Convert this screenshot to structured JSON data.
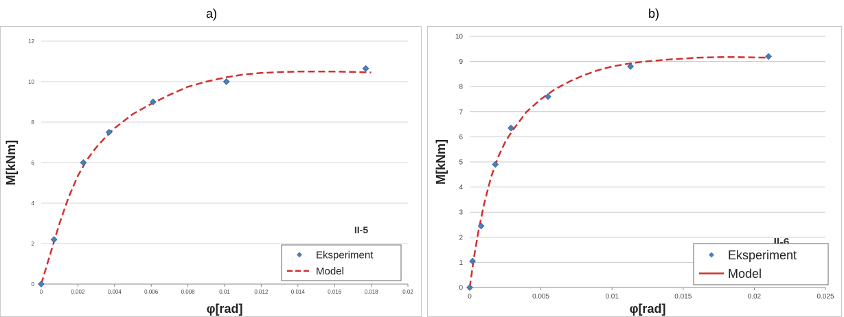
{
  "panels": {
    "a_label": "a)",
    "b_label": "b)"
  },
  "chart_data": [
    {
      "type": "scatter",
      "panel": "a)",
      "title": "",
      "xlabel": "φ[rad]",
      "ylabel": "M[kNm]",
      "annotation": "II-5",
      "xlim": [
        0,
        0.02
      ],
      "ylim": [
        0,
        12
      ],
      "xticks": [
        "0",
        "0.002",
        "0.004",
        "0.006",
        "0.008",
        "0.01",
        "0.012",
        "0.014",
        "0.016",
        "0.018",
        "0.02"
      ],
      "yticks": [
        "0",
        "2",
        "4",
        "6",
        "8",
        "10",
        "12"
      ],
      "grid": true,
      "legend_position": "bottom-right",
      "series": [
        {
          "name": "Eksperiment",
          "style": "diamond-markers",
          "color": "#4A7EBB",
          "x": [
            0,
            0.0007,
            0.0023,
            0.0037,
            0.0061,
            0.0101,
            0.0177
          ],
          "y": [
            0,
            2.2,
            6.0,
            7.5,
            9.0,
            10.0,
            10.65
          ]
        },
        {
          "name": "Model",
          "style": "dashed-line",
          "color": "#D32F2F",
          "x": [
            0,
            0.0005,
            0.001,
            0.0015,
            0.002,
            0.0025,
            0.003,
            0.0035,
            0.004,
            0.005,
            0.006,
            0.007,
            0.008,
            0.009,
            0.01,
            0.011,
            0.012,
            0.013,
            0.014,
            0.015,
            0.016,
            0.017,
            0.018
          ],
          "y": [
            0,
            1.5,
            3.0,
            4.3,
            5.35,
            6.15,
            6.75,
            7.25,
            7.7,
            8.4,
            8.9,
            9.35,
            9.75,
            10.0,
            10.2,
            10.35,
            10.43,
            10.47,
            10.5,
            10.5,
            10.5,
            10.48,
            10.45
          ]
        }
      ]
    },
    {
      "type": "scatter",
      "panel": "b)",
      "title": "",
      "xlabel": "φ[rad]",
      "ylabel": "M[kNm]",
      "annotation": "II-6",
      "xlim": [
        0,
        0.025
      ],
      "ylim": [
        0,
        10
      ],
      "xticks": [
        "0",
        "0.005",
        "0.01",
        "0.015",
        "0.02",
        "0.025"
      ],
      "yticks": [
        "0",
        "1",
        "2",
        "3",
        "4",
        "5",
        "6",
        "7",
        "8",
        "9",
        "10"
      ],
      "grid": true,
      "legend_position": "bottom-right",
      "series": [
        {
          "name": "Eksperiment",
          "style": "diamond-markers",
          "color": "#4A7EBB",
          "x": [
            0,
            0.0002,
            0.0008,
            0.0018,
            0.0029,
            0.0055,
            0.0113,
            0.021
          ],
          "y": [
            0,
            1.05,
            2.45,
            4.9,
            6.35,
            7.6,
            8.8,
            9.2
          ]
        },
        {
          "name": "Model",
          "style": "dashed-line",
          "color": "#D32F2F",
          "x": [
            0,
            0.0003,
            0.0006,
            0.001,
            0.0015,
            0.002,
            0.0025,
            0.003,
            0.004,
            0.005,
            0.006,
            0.007,
            0.008,
            0.009,
            0.01,
            0.011,
            0.012,
            0.014,
            0.016,
            0.018,
            0.02,
            0.021
          ],
          "y": [
            0,
            1.2,
            2.2,
            3.3,
            4.4,
            5.2,
            5.8,
            6.25,
            7.0,
            7.5,
            7.9,
            8.2,
            8.45,
            8.65,
            8.8,
            8.9,
            8.98,
            9.08,
            9.15,
            9.18,
            9.16,
            9.15
          ]
        }
      ]
    }
  ]
}
